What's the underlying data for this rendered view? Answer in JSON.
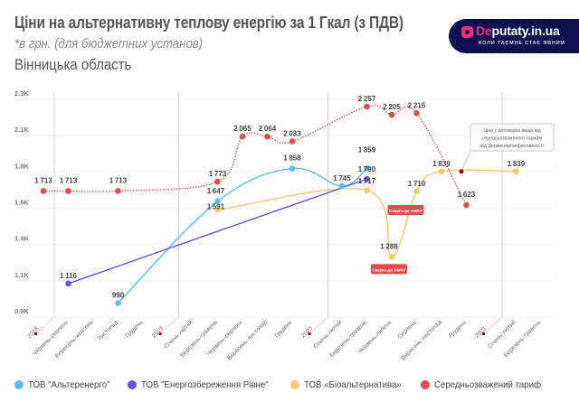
{
  "header": {
    "title": "Ціни на альтернативну теплову енергію за 1 Гкал (з ПДВ)",
    "subtitle": "*в грн. (для бюджетних установ)",
    "region": "Вінницька область"
  },
  "logo": {
    "name_accent": "De",
    "name_rest": "putaty.in.ua",
    "tagline": "КОЛИ ТАЄМНЕ СТАЄ ЯВНИМ",
    "icon": "location-pin-icon",
    "bg_color": "#0e1050",
    "accent_color": "#ec2f7d"
  },
  "chart_data": {
    "type": "line",
    "title": "Ціни на альтернативну теплову енергію за 1 Гкал (з ПДВ)",
    "xlabel": "",
    "ylabel": "",
    "ylim": [
      900,
      2304
    ],
    "yticks": [
      {
        "value": 900,
        "label": "0.9K"
      },
      {
        "value": 1134,
        "label": "1.1K"
      },
      {
        "value": 1368,
        "label": "1.4K"
      },
      {
        "value": 1602,
        "label": "1.6K"
      },
      {
        "value": 1836,
        "label": "1.8K"
      },
      {
        "value": 2070,
        "label": "2.1K"
      },
      {
        "value": 2304,
        "label": "2.3K"
      }
    ],
    "grid": true,
    "legend_position": "bottom-left",
    "categories": [
      "2018",
      "Червень-серпень",
      "Вересень-жовтень",
      "Листопад",
      "Грудень",
      "2019",
      "Січень-лютий",
      "Березень-травень",
      "Червень-серпень",
      "Вересень-листопад",
      "Грудень",
      "2020",
      "Січень-лютий",
      "Березень-травень",
      "Червень-липень",
      "Серпень",
      "Вересень-листопад",
      "Грудень",
      "2021",
      "Січень-лютий",
      "Березень-травень"
    ],
    "year_markers": [
      0,
      5,
      11,
      18
    ],
    "series": [
      {
        "name": "ТОВ \"Альтеренерго\"",
        "color": "#5bbde6",
        "style": "solid-smooth",
        "values": [
          null,
          null,
          null,
          990,
          null,
          null,
          null,
          1647,
          null,
          null,
          1858,
          null,
          1745,
          1859,
          null,
          null,
          null,
          null,
          null,
          null,
          null
        ]
      },
      {
        "name": "ТОВ \"Енергозбереження Рівне\"",
        "color": "#6b4fe0",
        "style": "solid",
        "values": [
          null,
          1116,
          null,
          null,
          null,
          null,
          null,
          null,
          null,
          null,
          null,
          null,
          null,
          1790,
          null,
          null,
          null,
          null,
          null,
          null,
          null
        ]
      },
      {
        "name": "ТОВ «Біоальтернатива»",
        "color": "#f2c86b",
        "style": "solid-smooth",
        "values": [
          null,
          null,
          null,
          null,
          null,
          null,
          null,
          1591,
          null,
          null,
          null,
          null,
          null,
          1717,
          1288,
          1710,
          1839,
          null,
          null,
          1839,
          null
        ]
      },
      {
        "name": "Середньозважений тариф",
        "color": "#e04b4f",
        "style": "dotted-smooth",
        "values": [
          1713,
          1713,
          null,
          1713,
          null,
          null,
          null,
          1773,
          2065,
          2064,
          2033,
          null,
          null,
          2257,
          2205,
          2215,
          null,
          1623,
          null,
          null,
          null
        ]
      }
    ],
    "annotations": [
      {
        "type": "badge",
        "text": "Скарга до АМКУ",
        "series": 2,
        "category_index": 14
      },
      {
        "type": "badge",
        "text": "Скарга до АМКУ",
        "series": 2,
        "category_index": 15
      },
      {
        "type": "callout",
        "text": "Ціна у договорах вища від середньозваженого тарифу від Держенергоефективності",
        "category_index": 16.8,
        "value": 1839
      }
    ]
  },
  "legend": [
    {
      "label": "ТОВ \"Альтеренерго\"",
      "color": "#5bbde6"
    },
    {
      "label": "ТОВ \"Енергозбереження Рівне\"",
      "color": "#6b4fe0"
    },
    {
      "label": "ТОВ «Біоальтернатива»",
      "color": "#f2c86b"
    },
    {
      "label": "Середньозважений тариф",
      "color": "#e04b4f"
    }
  ]
}
